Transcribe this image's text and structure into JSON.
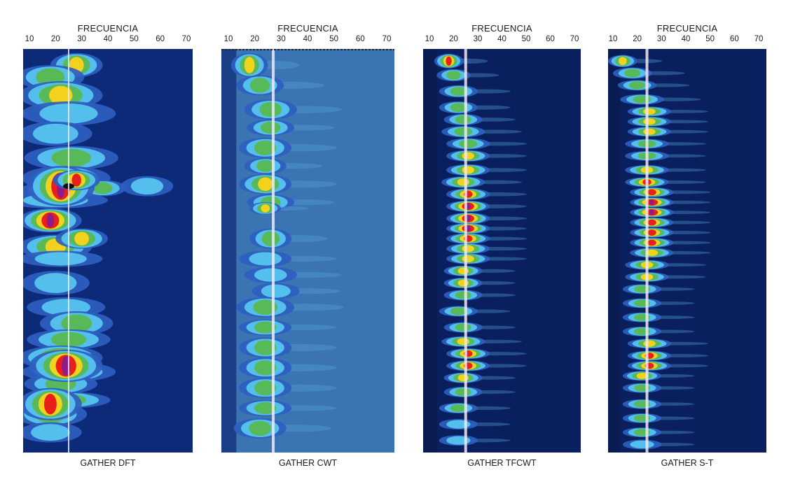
{
  "chart_data": [
    {
      "type": "heatmap",
      "title": "GATHER DFT",
      "xlabel": "FRECUENCIA",
      "x_ticks": [
        10,
        20,
        30,
        40,
        50,
        60,
        70
      ],
      "marker_frequency": 25,
      "background": "#0c2a78",
      "rows": [
        {
          "t": 0.04,
          "f": 28,
          "w": 10,
          "p": 0.55,
          "h": 0.03
        },
        {
          "t": 0.07,
          "f": 18,
          "w": 13,
          "p": 0.4,
          "h": 0.03
        },
        {
          "t": 0.115,
          "f": 22,
          "w": 16,
          "p": 0.5,
          "h": 0.035
        },
        {
          "t": 0.16,
          "f": 25,
          "w": 18,
          "p": 0.3,
          "h": 0.03
        },
        {
          "t": 0.21,
          "f": 20,
          "w": 14,
          "p": 0.25,
          "h": 0.03
        },
        {
          "t": 0.27,
          "f": 26,
          "w": 18,
          "p": 0.45,
          "h": 0.03
        },
        {
          "t": 0.32,
          "f": 24,
          "w": 17,
          "p": 0.35,
          "h": 0.03
        },
        {
          "t": 0.35,
          "f": 20,
          "w": 14,
          "p": 0.4,
          "h": 0.02
        },
        {
          "t": 0.375,
          "f": 20,
          "w": 20,
          "p": 0.3,
          "h": 0.02
        },
        {
          "t": 0.34,
          "f": 55,
          "w": 10,
          "p": 0.2,
          "h": 0.025
        },
        {
          "t": 0.425,
          "f": 18,
          "w": 12,
          "p": 0.95,
          "h": 0.03
        },
        {
          "t": 0.345,
          "f": 38,
          "w": 9,
          "p": 0.45,
          "h": 0.02
        },
        {
          "t": 0.49,
          "f": 20,
          "w": 14,
          "p": 0.55,
          "h": 0.03
        },
        {
          "t": 0.47,
          "f": 30,
          "w": 10,
          "p": 0.5,
          "h": 0.025
        },
        {
          "t": 0.52,
          "f": 22,
          "w": 16,
          "p": 0.3,
          "h": 0.02
        },
        {
          "t": 0.58,
          "f": 20,
          "w": 13,
          "p": 0.2,
          "h": 0.03
        },
        {
          "t": 0.64,
          "f": 24,
          "w": 15,
          "p": 0.3,
          "h": 0.025
        },
        {
          "t": 0.68,
          "f": 28,
          "w": 14,
          "p": 0.45,
          "h": 0.03
        },
        {
          "t": 0.72,
          "f": 25,
          "w": 16,
          "p": 0.35,
          "h": 0.025
        },
        {
          "t": 0.765,
          "f": 22,
          "w": 16,
          "p": 0.5,
          "h": 0.03
        },
        {
          "t": 0.8,
          "f": 25,
          "w": 18,
          "p": 0.45,
          "h": 0.025
        },
        {
          "t": 0.83,
          "f": 22,
          "w": 14,
          "p": 0.4,
          "h": 0.025
        },
        {
          "t": 0.87,
          "f": 25,
          "w": 16,
          "p": 0.35,
          "h": 0.02
        },
        {
          "t": 0.905,
          "f": 18,
          "w": 14,
          "p": 0.4,
          "h": 0.03
        },
        {
          "t": 0.95,
          "f": 18,
          "w": 12,
          "p": 0.3,
          "h": 0.025
        }
      ],
      "blobs": [
        {
          "t": 0.34,
          "f": 22,
          "w": 13,
          "h": 0.05,
          "p": 1.0
        },
        {
          "t": 0.325,
          "f": 28,
          "w": 9,
          "h": 0.025,
          "p": 0.7
        },
        {
          "t": 0.785,
          "f": 24,
          "w": 14,
          "h": 0.04,
          "p": 0.95
        },
        {
          "t": 0.88,
          "f": 18,
          "w": 12,
          "h": 0.04,
          "p": 0.85
        }
      ]
    },
    {
      "type": "heatmap",
      "title": "GATHER CWT",
      "xlabel": "FRECUENCIA",
      "x_ticks": [
        10,
        20,
        30,
        40,
        50,
        60,
        70
      ],
      "marker_frequency": 27,
      "background": "#3b74b3",
      "rows": [
        {
          "t": 0.04,
          "f": 18,
          "w": 7,
          "p": 0.6,
          "h": 0.03
        },
        {
          "t": 0.09,
          "f": 22,
          "w": 9,
          "p": 0.4,
          "h": 0.025
        },
        {
          "t": 0.15,
          "f": 26,
          "w": 10,
          "p": 0.35,
          "h": 0.025
        },
        {
          "t": 0.195,
          "f": 26,
          "w": 9,
          "p": 0.4,
          "h": 0.02
        },
        {
          "t": 0.245,
          "f": 24,
          "w": 10,
          "p": 0.4,
          "h": 0.025
        },
        {
          "t": 0.29,
          "f": 24,
          "w": 8,
          "p": 0.4,
          "h": 0.02
        },
        {
          "t": 0.335,
          "f": 24,
          "w": 10,
          "p": 0.55,
          "h": 0.025
        },
        {
          "t": 0.38,
          "f": 26,
          "w": 9,
          "p": 0.45,
          "h": 0.02
        },
        {
          "t": 0.47,
          "f": 26,
          "w": 8,
          "p": 0.45,
          "h": 0.025
        },
        {
          "t": 0.52,
          "f": 24,
          "w": 10,
          "p": 0.3,
          "h": 0.02
        },
        {
          "t": 0.56,
          "f": 26,
          "w": 10,
          "p": 0.3,
          "h": 0.02
        },
        {
          "t": 0.6,
          "f": 28,
          "w": 9,
          "p": 0.3,
          "h": 0.02
        },
        {
          "t": 0.64,
          "f": 24,
          "w": 11,
          "p": 0.4,
          "h": 0.025
        },
        {
          "t": 0.69,
          "f": 24,
          "w": 10,
          "p": 0.4,
          "h": 0.02
        },
        {
          "t": 0.74,
          "f": 24,
          "w": 10,
          "p": 0.4,
          "h": 0.025
        },
        {
          "t": 0.79,
          "f": 24,
          "w": 10,
          "p": 0.4,
          "h": 0.025
        },
        {
          "t": 0.84,
          "f": 24,
          "w": 10,
          "p": 0.4,
          "h": 0.025
        },
        {
          "t": 0.89,
          "f": 24,
          "w": 10,
          "p": 0.35,
          "h": 0.02
        },
        {
          "t": 0.94,
          "f": 22,
          "w": 10,
          "p": 0.35,
          "h": 0.025
        }
      ],
      "blobs": [
        {
          "t": 0.395,
          "f": 24,
          "w": 6,
          "h": 0.015,
          "p": 0.55
        }
      ]
    },
    {
      "type": "heatmap",
      "title": "GATHER TFCWT",
      "xlabel": "FRECUENCIA",
      "x_ticks": [
        10,
        20,
        30,
        40,
        50,
        60,
        70
      ],
      "marker_frequency": 25,
      "background": "#0a1f5e",
      "rows": [
        {
          "t": 0.03,
          "f": 18,
          "w": 6,
          "p": 0.85,
          "h": 0.018
        },
        {
          "t": 0.065,
          "f": 20,
          "w": 7,
          "p": 0.4,
          "h": 0.015
        },
        {
          "t": 0.105,
          "f": 22,
          "w": 8,
          "p": 0.35,
          "h": 0.015
        },
        {
          "t": 0.145,
          "f": 22,
          "w": 8,
          "p": 0.35,
          "h": 0.015
        },
        {
          "t": 0.175,
          "f": 24,
          "w": 8,
          "p": 0.45,
          "h": 0.014
        },
        {
          "t": 0.205,
          "f": 24,
          "w": 9,
          "p": 0.45,
          "h": 0.014
        },
        {
          "t": 0.235,
          "f": 26,
          "w": 9,
          "p": 0.45,
          "h": 0.014
        },
        {
          "t": 0.265,
          "f": 26,
          "w": 9,
          "p": 0.5,
          "h": 0.014
        },
        {
          "t": 0.3,
          "f": 26,
          "w": 9,
          "p": 0.6,
          "h": 0.014
        },
        {
          "t": 0.33,
          "f": 24,
          "w": 9,
          "p": 0.65,
          "h": 0.014
        },
        {
          "t": 0.36,
          "f": 26,
          "w": 9,
          "p": 0.8,
          "h": 0.014
        },
        {
          "t": 0.39,
          "f": 26,
          "w": 9,
          "p": 0.9,
          "h": 0.014
        },
        {
          "t": 0.42,
          "f": 26,
          "w": 9,
          "p": 0.9,
          "h": 0.014
        },
        {
          "t": 0.445,
          "f": 26,
          "w": 9,
          "p": 0.9,
          "h": 0.013
        },
        {
          "t": 0.47,
          "f": 26,
          "w": 9,
          "p": 0.8,
          "h": 0.013
        },
        {
          "t": 0.495,
          "f": 26,
          "w": 9,
          "p": 0.65,
          "h": 0.013
        },
        {
          "t": 0.52,
          "f": 26,
          "w": 9,
          "p": 0.6,
          "h": 0.013
        },
        {
          "t": 0.55,
          "f": 24,
          "w": 8,
          "p": 0.55,
          "h": 0.013
        },
        {
          "t": 0.58,
          "f": 24,
          "w": 8,
          "p": 0.65,
          "h": 0.013
        },
        {
          "t": 0.61,
          "f": 24,
          "w": 8,
          "p": 0.4,
          "h": 0.013
        },
        {
          "t": 0.65,
          "f": 22,
          "w": 8,
          "p": 0.35,
          "h": 0.013
        },
        {
          "t": 0.69,
          "f": 24,
          "w": 8,
          "p": 0.4,
          "h": 0.013
        },
        {
          "t": 0.725,
          "f": 24,
          "w": 9,
          "p": 0.6,
          "h": 0.013
        },
        {
          "t": 0.755,
          "f": 26,
          "w": 9,
          "p": 0.8,
          "h": 0.013
        },
        {
          "t": 0.785,
          "f": 26,
          "w": 9,
          "p": 0.85,
          "h": 0.013
        },
        {
          "t": 0.815,
          "f": 24,
          "w": 8,
          "p": 0.55,
          "h": 0.013
        },
        {
          "t": 0.85,
          "f": 24,
          "w": 8,
          "p": 0.4,
          "h": 0.013
        },
        {
          "t": 0.89,
          "f": 22,
          "w": 8,
          "p": 0.35,
          "h": 0.013
        },
        {
          "t": 0.93,
          "f": 22,
          "w": 8,
          "p": 0.3,
          "h": 0.013
        },
        {
          "t": 0.97,
          "f": 22,
          "w": 8,
          "p": 0.3,
          "h": 0.013
        }
      ],
      "blobs": []
    },
    {
      "type": "heatmap",
      "title": "GATHER S-T",
      "xlabel": "FRECUENCIA",
      "x_ticks": [
        10,
        20,
        30,
        40,
        50,
        60,
        70
      ],
      "marker_frequency": 24,
      "background": "#0a1f5e",
      "rows": [
        {
          "t": 0.03,
          "f": 14,
          "w": 6,
          "p": 0.65,
          "h": 0.015
        },
        {
          "t": 0.06,
          "f": 18,
          "w": 8,
          "p": 0.45,
          "h": 0.014
        },
        {
          "t": 0.09,
          "f": 20,
          "w": 8,
          "p": 0.35,
          "h": 0.013
        },
        {
          "t": 0.125,
          "f": 22,
          "w": 9,
          "p": 0.35,
          "h": 0.013
        },
        {
          "t": 0.155,
          "f": 25,
          "w": 9,
          "p": 0.6,
          "h": 0.012
        },
        {
          "t": 0.18,
          "f": 25,
          "w": 9,
          "p": 0.65,
          "h": 0.012
        },
        {
          "t": 0.205,
          "f": 25,
          "w": 9,
          "p": 0.55,
          "h": 0.012
        },
        {
          "t": 0.235,
          "f": 24,
          "w": 9,
          "p": 0.45,
          "h": 0.012
        },
        {
          "t": 0.265,
          "f": 24,
          "w": 9,
          "p": 0.45,
          "h": 0.012
        },
        {
          "t": 0.3,
          "f": 24,
          "w": 9,
          "p": 0.55,
          "h": 0.012
        },
        {
          "t": 0.33,
          "f": 24,
          "w": 9,
          "p": 0.7,
          "h": 0.012
        },
        {
          "t": 0.355,
          "f": 26,
          "w": 9,
          "p": 0.85,
          "h": 0.012
        },
        {
          "t": 0.38,
          "f": 26,
          "w": 9,
          "p": 0.9,
          "h": 0.012
        },
        {
          "t": 0.405,
          "f": 26,
          "w": 9,
          "p": 0.9,
          "h": 0.012
        },
        {
          "t": 0.43,
          "f": 26,
          "w": 9,
          "p": 0.85,
          "h": 0.012
        },
        {
          "t": 0.455,
          "f": 26,
          "w": 9,
          "p": 0.75,
          "h": 0.012
        },
        {
          "t": 0.48,
          "f": 26,
          "w": 9,
          "p": 0.7,
          "h": 0.012
        },
        {
          "t": 0.505,
          "f": 26,
          "w": 9,
          "p": 0.6,
          "h": 0.012
        },
        {
          "t": 0.535,
          "f": 24,
          "w": 9,
          "p": 0.5,
          "h": 0.012
        },
        {
          "t": 0.565,
          "f": 24,
          "w": 9,
          "p": 0.55,
          "h": 0.012
        },
        {
          "t": 0.595,
          "f": 22,
          "w": 8,
          "p": 0.45,
          "h": 0.012
        },
        {
          "t": 0.63,
          "f": 22,
          "w": 8,
          "p": 0.4,
          "h": 0.012
        },
        {
          "t": 0.665,
          "f": 22,
          "w": 8,
          "p": 0.4,
          "h": 0.012
        },
        {
          "t": 0.7,
          "f": 22,
          "w": 8,
          "p": 0.45,
          "h": 0.012
        },
        {
          "t": 0.73,
          "f": 25,
          "w": 9,
          "p": 0.65,
          "h": 0.012
        },
        {
          "t": 0.76,
          "f": 25,
          "w": 9,
          "p": 0.85,
          "h": 0.012
        },
        {
          "t": 0.785,
          "f": 25,
          "w": 9,
          "p": 0.85,
          "h": 0.012
        },
        {
          "t": 0.81,
          "f": 22,
          "w": 8,
          "p": 0.6,
          "h": 0.012
        },
        {
          "t": 0.84,
          "f": 22,
          "w": 8,
          "p": 0.45,
          "h": 0.012
        },
        {
          "t": 0.88,
          "f": 22,
          "w": 8,
          "p": 0.4,
          "h": 0.012
        },
        {
          "t": 0.915,
          "f": 22,
          "w": 8,
          "p": 0.4,
          "h": 0.012
        },
        {
          "t": 0.95,
          "f": 22,
          "w": 8,
          "p": 0.35,
          "h": 0.012
        },
        {
          "t": 0.98,
          "f": 22,
          "w": 8,
          "p": 0.3,
          "h": 0.012
        }
      ],
      "blobs": []
    }
  ]
}
